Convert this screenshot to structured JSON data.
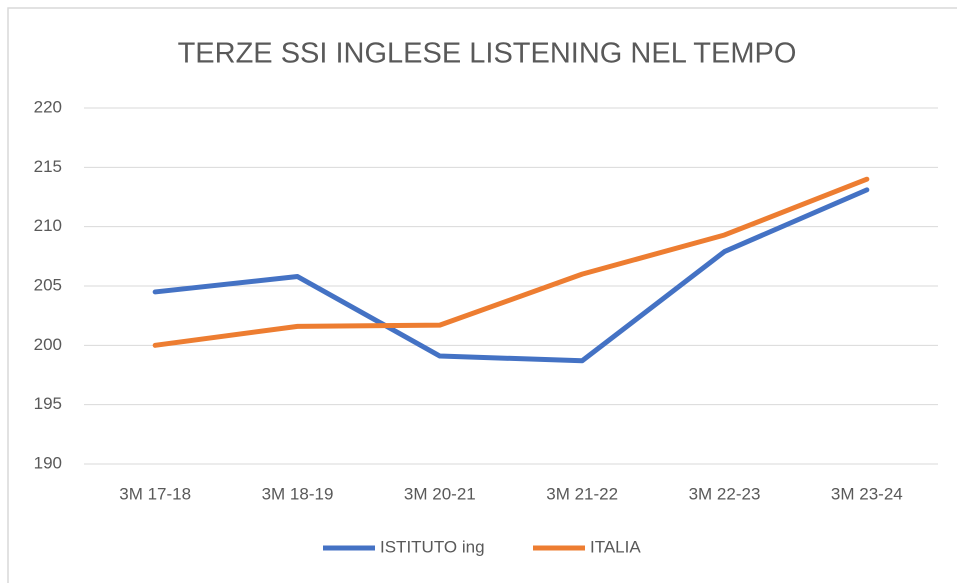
{
  "chart_data": {
    "type": "line",
    "title": "TERZE SSI INGLESE LISTENING NEL TEMPO",
    "categories": [
      "3M 17-18",
      "3M 18-19",
      "3M 20-21",
      "3M 21-22",
      "3M 22-23",
      "3M 23-24"
    ],
    "series": [
      {
        "name": "ISTITUTO ing",
        "color": "#4472c4",
        "values": [
          204.5,
          205.8,
          199.1,
          198.7,
          207.9,
          213.1
        ]
      },
      {
        "name": "ITALIA",
        "color": "#ed7d31",
        "values": [
          200,
          201.6,
          201.7,
          206,
          209.3,
          214
        ]
      }
    ],
    "ylim": [
      190,
      220
    ],
    "yticks": [
      190,
      195,
      200,
      205,
      210,
      215,
      220
    ],
    "grid": true,
    "legend": "bottom"
  }
}
